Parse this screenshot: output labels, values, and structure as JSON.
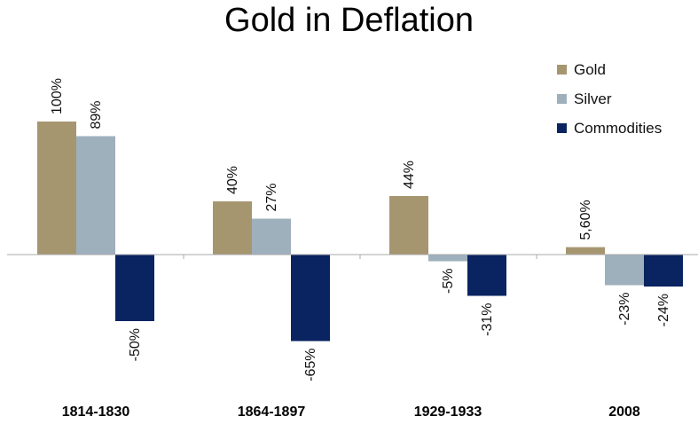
{
  "chart_data": {
    "type": "bar",
    "title": "Gold in Deflation",
    "categories": [
      "1814-1830",
      "1864-1897",
      "1929-1933",
      "2008"
    ],
    "series": [
      {
        "name": "Gold",
        "color": "#a69670",
        "values": [
          100,
          40,
          44,
          5.6
        ],
        "labels": [
          "100%",
          "40%",
          "44%",
          "5,60%"
        ]
      },
      {
        "name": "Silver",
        "color": "#9fb0bd",
        "values": [
          89,
          27,
          -5,
          -23
        ],
        "labels": [
          "89%",
          "27%",
          "-5%",
          "-23%"
        ]
      },
      {
        "name": "Commodities",
        "color": "#0a2461",
        "values": [
          -50,
          -65,
          -31,
          -24
        ],
        "labels": [
          "-50%",
          "-65%",
          "-31%",
          "-24%"
        ]
      }
    ],
    "xlabel": "",
    "ylabel": "",
    "ylim": [
      -100,
      100
    ],
    "legend_position": "top-right",
    "grid": false
  }
}
